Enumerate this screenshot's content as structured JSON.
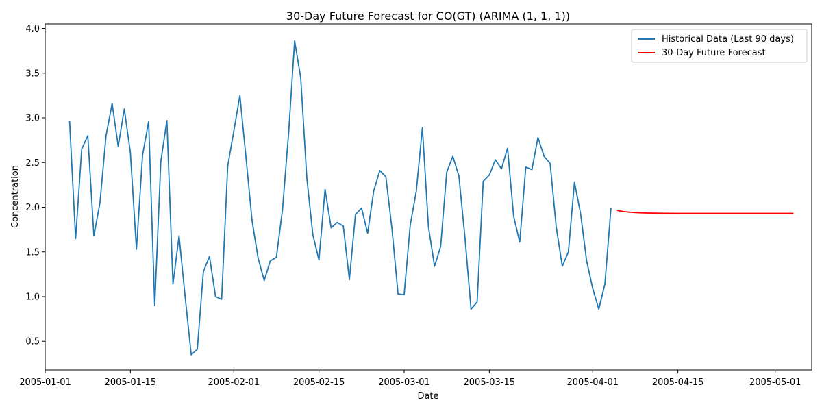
{
  "chart_data": {
    "type": "line",
    "title": "30-Day Future Forecast for CO(GT) (ARIMA (1, 1, 1))",
    "xlabel": "Date",
    "ylabel": "Concentration",
    "xlim": [
      "2005-01-01",
      "2005-05-07"
    ],
    "ylim": [
      0.18,
      4.05
    ],
    "x_ticks": [
      "2005-01-01",
      "2005-01-15",
      "2005-02-01",
      "2005-02-15",
      "2005-03-01",
      "2005-03-15",
      "2005-04-01",
      "2005-04-15",
      "2005-05-01"
    ],
    "y_ticks": [
      "0.5",
      "1.0",
      "1.5",
      "2.0",
      "2.5",
      "3.0",
      "3.5",
      "4.0"
    ],
    "legend_position": "top-right",
    "series": [
      {
        "name": "Historical Data (Last 90 days)",
        "color": "#1f77b4",
        "start_date": "2005-01-05",
        "values": [
          2.97,
          1.65,
          2.65,
          2.8,
          1.68,
          2.05,
          2.8,
          3.16,
          2.68,
          3.1,
          2.61,
          1.53,
          2.58,
          2.96,
          0.9,
          2.51,
          2.97,
          1.14,
          1.68,
          1.0,
          0.35,
          0.41,
          1.28,
          1.45,
          1.0,
          0.97,
          2.46,
          2.85,
          3.25,
          2.56,
          1.85,
          1.43,
          1.18,
          1.4,
          1.44,
          1.97,
          2.82,
          3.86,
          3.45,
          2.33,
          1.69,
          1.41,
          2.2,
          1.77,
          1.83,
          1.79,
          1.19,
          1.92,
          1.99,
          1.71,
          2.18,
          2.41,
          2.34,
          1.76,
          1.03,
          1.02,
          1.8,
          2.18,
          2.89,
          1.78,
          1.34,
          1.56,
          2.39,
          2.57,
          2.35,
          1.66,
          0.86,
          0.94,
          2.29,
          2.36,
          2.53,
          2.43,
          2.66,
          1.9,
          1.61,
          2.45,
          2.42,
          2.78,
          2.57,
          2.49,
          1.78,
          1.34,
          1.5,
          2.28,
          1.93,
          1.4,
          1.09,
          0.86,
          1.14,
          1.99
        ]
      },
      {
        "name": "30-Day Future Forecast",
        "color": "#ff0000",
        "start_date": "2005-04-05",
        "values": [
          1.965,
          1.952,
          1.945,
          1.94,
          1.937,
          1.935,
          1.934,
          1.933,
          1.932,
          1.932,
          1.931,
          1.931,
          1.931,
          1.931,
          1.931,
          1.931,
          1.931,
          1.931,
          1.931,
          1.931,
          1.931,
          1.931,
          1.931,
          1.931,
          1.931,
          1.931,
          1.931,
          1.931,
          1.931,
          1.931
        ]
      }
    ]
  }
}
